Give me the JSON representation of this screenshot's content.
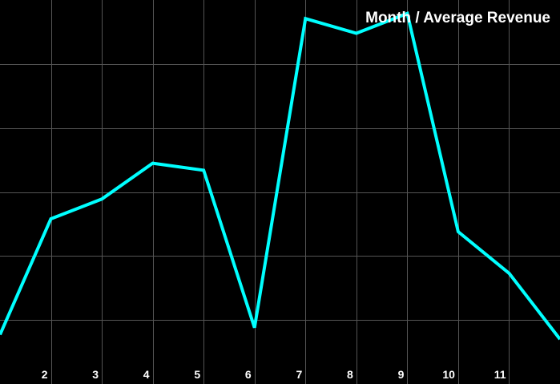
{
  "chart_data": {
    "type": "line",
    "title": "Month / Average Revenue",
    "xlabel": "",
    "ylabel": "",
    "x": [
      1,
      2,
      3,
      4,
      5,
      6,
      7,
      8,
      9,
      10,
      11,
      12
    ],
    "x_tick_labels": [
      "",
      "2",
      "3",
      "4",
      "5",
      "6",
      "7",
      "8",
      "9",
      "10",
      "11",
      ""
    ],
    "series": [
      {
        "values": [
          -0.23,
          1.58,
          1.89,
          2.45,
          2.34,
          -0.12,
          4.71,
          4.48,
          4.79,
          1.38,
          0.73,
          -0.3
        ]
      }
    ],
    "ylim": [
      -1,
      5
    ],
    "grid": true,
    "line_color": "#00ffff",
    "background": "#000000"
  }
}
